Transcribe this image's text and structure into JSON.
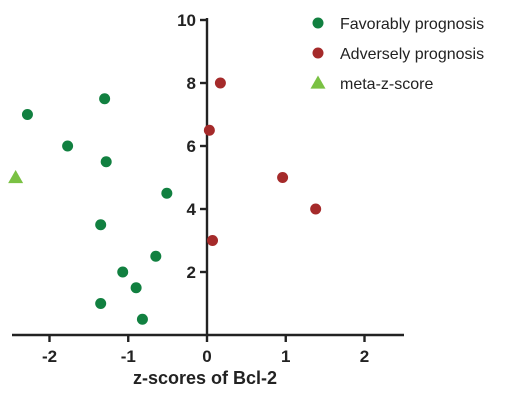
{
  "chart_data": {
    "type": "scatter",
    "xlabel": "z-scores of Bcl-2",
    "ylabel": "",
    "xlim": [
      -2.5,
      2.5
    ],
    "ylim": [
      0,
      10
    ],
    "x_ticks": [
      -2,
      -1,
      0,
      1,
      2
    ],
    "y_ticks": [
      2,
      4,
      6,
      8,
      10
    ],
    "grid": false,
    "legend_position": "top-right",
    "series": [
      {
        "name": "Favorably prognosis",
        "color": "#118040",
        "marker": "circle",
        "points": [
          {
            "x": -1.3,
            "y": 7.5
          },
          {
            "x": -2.28,
            "y": 7.0
          },
          {
            "x": -1.77,
            "y": 6.0
          },
          {
            "x": -1.28,
            "y": 5.5
          },
          {
            "x": -0.51,
            "y": 4.5
          },
          {
            "x": -1.35,
            "y": 3.5
          },
          {
            "x": -0.65,
            "y": 2.5
          },
          {
            "x": -1.07,
            "y": 2.0
          },
          {
            "x": -0.9,
            "y": 1.5
          },
          {
            "x": -1.35,
            "y": 1.0
          },
          {
            "x": -0.82,
            "y": 0.5
          }
        ]
      },
      {
        "name": "Adversely prognosis",
        "color": "#a52a2a",
        "marker": "circle",
        "points": [
          {
            "x": 0.17,
            "y": 8.0
          },
          {
            "x": 0.03,
            "y": 6.5
          },
          {
            "x": 0.96,
            "y": 5.0
          },
          {
            "x": 1.38,
            "y": 4.0
          },
          {
            "x": 0.07,
            "y": 3.0
          }
        ]
      },
      {
        "name": "meta-z-score",
        "color": "#7ac143",
        "marker": "triangle",
        "points": [
          {
            "x": -2.43,
            "y": 5.0
          }
        ]
      }
    ]
  }
}
